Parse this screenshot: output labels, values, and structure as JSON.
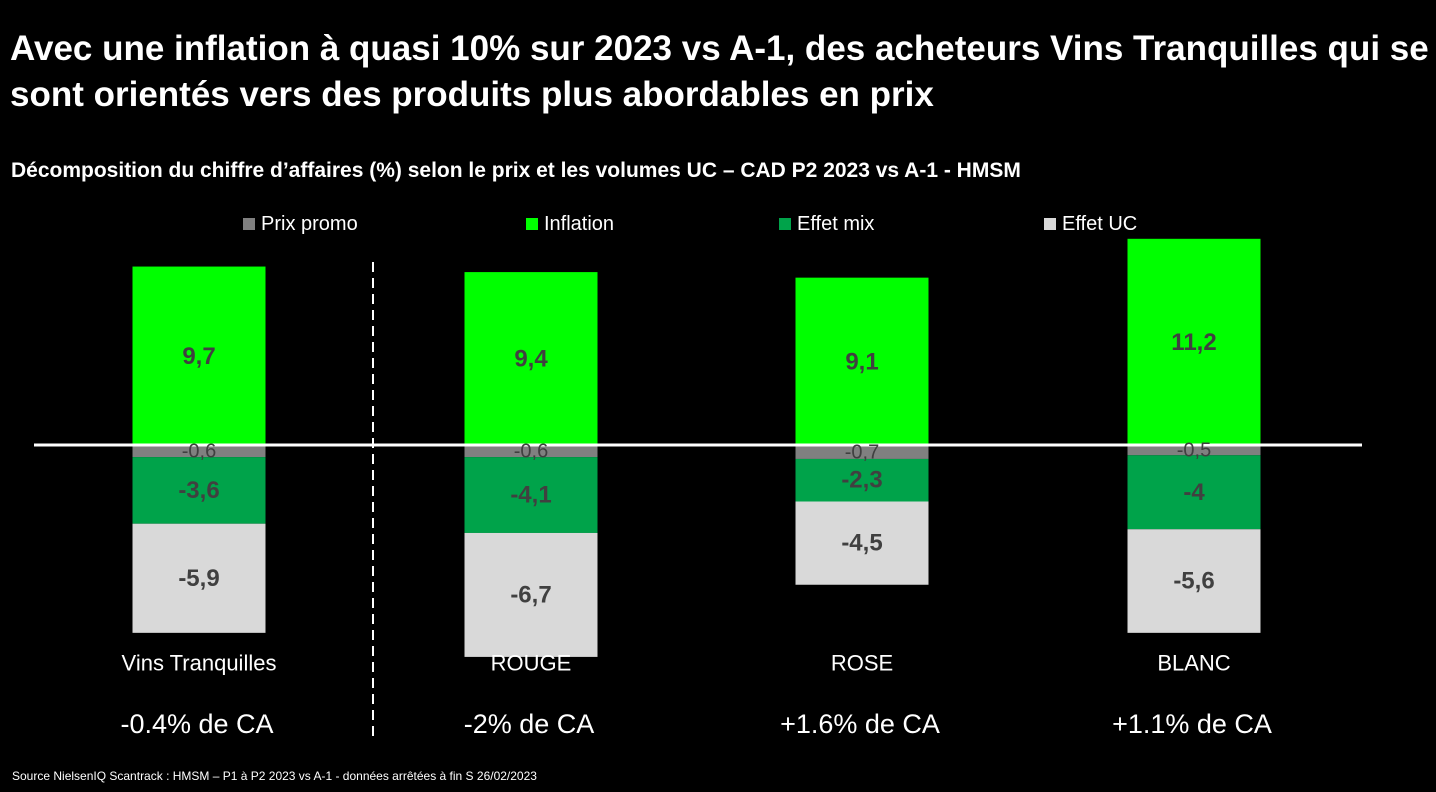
{
  "title": "Avec une inflation à quasi 10% sur 2023 vs A-1, des acheteurs Vins Tranquilles qui se sont orientés vers des produits plus abordables en prix",
  "subtitle": "Décomposition du chiffre d’affaires (%) selon le prix et les volumes UC – CAD P2 2023 vs A-1 - HMSM",
  "source": "Source NielsenIQ Scantrack : HMSM – P1 à P2 2023 vs A-1 - données arrêtées à fin S 26/02/2023",
  "colors": {
    "prix_promo": "#808080",
    "inflation": "#00ff00",
    "effet_mix": "#00a34a",
    "effet_uc": "#d9d9d9",
    "label": "#404040"
  },
  "chart_data": {
    "type": "bar",
    "stacked": true,
    "categories": [
      "Vins Tranquilles",
      "ROUGE",
      "ROSE",
      "BLANC"
    ],
    "category_totals": [
      "-0.4% de CA",
      "-2% de CA",
      "+1.6% de CA",
      "+1.1% de CA"
    ],
    "legend_position": "top",
    "grid": false,
    "series": [
      {
        "name": "Prix promo",
        "values": [
          -0.6,
          -0.6,
          -0.7,
          -0.5
        ],
        "labels": [
          "-0,6",
          "-0,6",
          "-0,7",
          "-0,5"
        ]
      },
      {
        "name": "Inflation",
        "values": [
          9.7,
          9.4,
          9.1,
          11.2
        ],
        "labels": [
          "9,7",
          "9,4",
          "9,1",
          "11,2"
        ]
      },
      {
        "name": "Effet mix",
        "values": [
          -3.6,
          -4.1,
          -2.3,
          -4
        ],
        "labels": [
          "-3,6",
          "-4,1",
          "-2,3",
          "-4"
        ]
      },
      {
        "name": "Effet UC",
        "values": [
          -5.9,
          -6.7,
          -4.5,
          -5.6
        ],
        "labels": [
          "-5,9",
          "-6,7",
          "-4,5",
          "-5,6"
        ]
      }
    ]
  }
}
